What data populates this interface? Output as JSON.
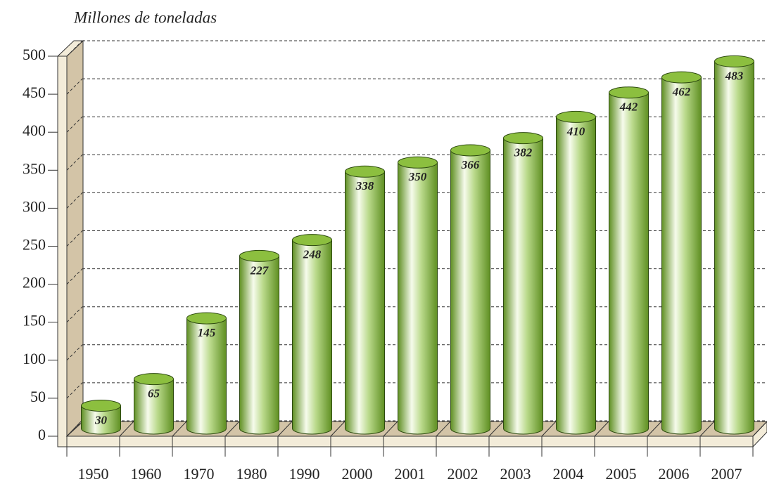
{
  "chart_data": {
    "type": "bar",
    "title": "Millones de toneladas",
    "categories": [
      "1950",
      "1960",
      "1970",
      "1980",
      "1990",
      "2000",
      "2001",
      "2002",
      "2003",
      "2004",
      "2005",
      "2006",
      "2007"
    ],
    "values": [
      30,
      65,
      145,
      227,
      248,
      338,
      350,
      366,
      382,
      410,
      442,
      462,
      483
    ],
    "color": "#8cbf3f",
    "ylim": [
      0,
      500
    ],
    "yticks": [
      0,
      50,
      100,
      150,
      200,
      250,
      300,
      350,
      400,
      450,
      500
    ],
    "grid": true
  }
}
